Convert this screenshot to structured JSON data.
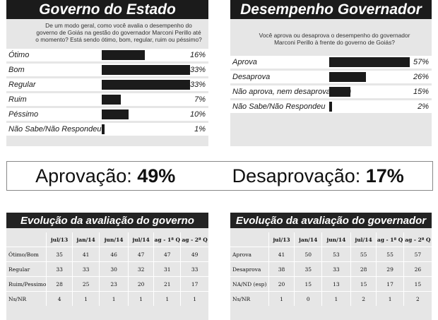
{
  "governo": {
    "title": "Governo do Estado",
    "question": "De um modo geral, como você avalia o desempenho do governo de Goiás na gestão do governador Marconi Perillo até o momento? Está sendo ótimo, bom, regular, ruim ou péssimo?"
  },
  "governador": {
    "title": "Desempenho Governador",
    "question": "Você aprova ou desaprova o desempenho do governador Marconi Perillo à frente do governo de Goiás?"
  },
  "summary": {
    "aprovacao_label": "Aprovação:",
    "aprovacao_value": "49%",
    "desaprovacao_label": "Desaprovação:",
    "desaprovacao_value": "17%"
  },
  "chart_data": [
    {
      "type": "bar",
      "title": "Governo do Estado",
      "categories": [
        "Ótimo",
        "Bom",
        "Regular",
        "Ruim",
        "Péssimo",
        "Não Sabe/Não Respondeu"
      ],
      "values": [
        16,
        33,
        33,
        7,
        10,
        1
      ],
      "labels": [
        "16%",
        "33%",
        "33%",
        "7%",
        "10%",
        "1%"
      ]
    },
    {
      "type": "bar",
      "title": "Desempenho Governador",
      "categories": [
        "Aprova",
        "Desaprova",
        "Não aprova, nem desaprova (Esp)",
        "Não Sabe/Não Respondeu"
      ],
      "values": [
        57,
        26,
        15,
        2
      ],
      "labels": [
        "57%",
        "26%",
        "15%",
        "2%"
      ]
    },
    {
      "type": "table",
      "title": "Evolução da avaliação do governo",
      "columns": [
        "jul/13",
        "jan/14",
        "jun/14",
        "jul/14",
        "ag - 1ª Q",
        "ag - 2ª Q"
      ],
      "rows": [
        {
          "label": "Ótimo/Bom",
          "values": [
            35,
            41,
            46,
            47,
            47,
            49
          ]
        },
        {
          "label": "Regular",
          "values": [
            33,
            33,
            30,
            32,
            31,
            33
          ]
        },
        {
          "label": "Ruim/Pessimo",
          "values": [
            28,
            25,
            23,
            20,
            21,
            17
          ]
        },
        {
          "label": "Ns/NR",
          "values": [
            4,
            1,
            1,
            1,
            1,
            1
          ]
        }
      ]
    },
    {
      "type": "table",
      "title": "Evolução da avaliação do governador",
      "columns": [
        "jul/13",
        "jan/14",
        "jun/14",
        "jul/14",
        "ag - 1ª Q",
        "ag - 2ª Q"
      ],
      "rows": [
        {
          "label": "Aprova",
          "values": [
            41,
            50,
            53,
            55,
            55,
            57
          ]
        },
        {
          "label": "Desaprova",
          "values": [
            38,
            35,
            33,
            28,
            29,
            26
          ]
        },
        {
          "label": "NA/ND (esp)",
          "values": [
            20,
            15,
            13,
            15,
            17,
            15
          ]
        },
        {
          "label": "Ns/NR",
          "values": [
            1,
            0,
            1,
            2,
            1,
            2
          ]
        }
      ]
    }
  ]
}
